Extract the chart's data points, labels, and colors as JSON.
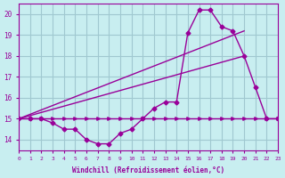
{
  "bg_color": "#c8eef0",
  "grid_color": "#a0c8d0",
  "line_color": "#990099",
  "xlim": [
    0,
    23
  ],
  "ylim": [
    13.5,
    20.5
  ],
  "yticks": [
    14,
    15,
    16,
    17,
    18,
    19,
    20
  ],
  "xticks": [
    0,
    1,
    2,
    3,
    4,
    5,
    6,
    7,
    8,
    9,
    10,
    11,
    12,
    13,
    14,
    15,
    16,
    17,
    18,
    19,
    20,
    21,
    22,
    23
  ],
  "xlabel": "Windchill (Refroidissement éolien,°C)",
  "temp_x": [
    0,
    1,
    2,
    3,
    4,
    5,
    6,
    7,
    8,
    9,
    10,
    11,
    12,
    13,
    14,
    15,
    16,
    17,
    18,
    19,
    20,
    21,
    22,
    23
  ],
  "temp_y": [
    15.0,
    15.0,
    15.0,
    14.8,
    14.5,
    14.5,
    14.0,
    13.8,
    13.8,
    14.3,
    14.5,
    15.0,
    15.5,
    15.8,
    15.8,
    19.1,
    20.2,
    20.2,
    19.4,
    19.2,
    18.0,
    16.5,
    15.0,
    15.0
  ],
  "flat_x": [
    0,
    1,
    2,
    3,
    4,
    5,
    6,
    7,
    8,
    9,
    10,
    11,
    12,
    13,
    14,
    15,
    16,
    17,
    18,
    19,
    20,
    21,
    22,
    23
  ],
  "flat_y": [
    15.0,
    15.0,
    15.0,
    15.0,
    15.0,
    15.0,
    15.0,
    15.0,
    15.0,
    15.0,
    15.0,
    15.0,
    15.0,
    15.0,
    15.0,
    15.0,
    15.0,
    15.0,
    15.0,
    15.0,
    15.0,
    15.0,
    15.0,
    15.0
  ],
  "trend1_x": [
    0,
    20
  ],
  "trend1_y": [
    15.0,
    19.2
  ],
  "trend2_x": [
    0,
    20
  ],
  "trend2_y": [
    15.0,
    18.0
  ]
}
